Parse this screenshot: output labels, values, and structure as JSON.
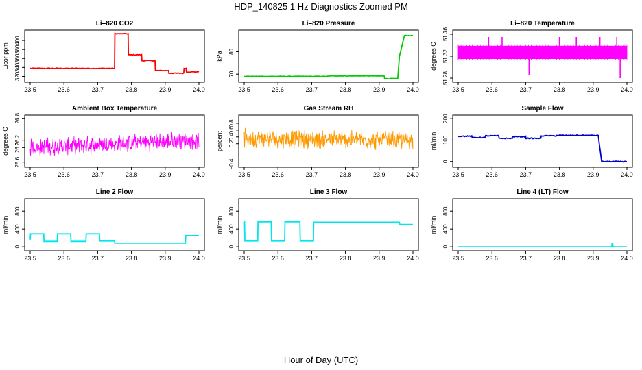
{
  "figure": {
    "title": "HDP_140825  1 Hz Diagnostics Zoomed PM",
    "xlabel": "Hour of Day (UTC)"
  },
  "chart_data": [
    {
      "type": "line",
      "title": "Li–820 CO2",
      "ylabel": "Licor ppm",
      "color": "#ff0000",
      "xlim": [
        23.5,
        24.0
      ],
      "ylim": [
        310,
        420
      ],
      "xticks": [
        "23.5",
        "23.6",
        "23.7",
        "23.8",
        "23.9",
        "24.0"
      ],
      "yticks": [
        "320",
        "340",
        "360",
        "380",
        "400"
      ],
      "pattern": "step",
      "noise": 0.8,
      "x": [
        23.5,
        23.75,
        23.751,
        23.79,
        23.791,
        23.83,
        23.831,
        23.87,
        23.871,
        23.91,
        23.911,
        23.955,
        23.956,
        23.962,
        23.963,
        24.0
      ],
      "y": [
        338,
        338,
        415,
        415,
        368,
        368,
        355,
        355,
        333,
        333,
        327,
        327,
        338,
        338,
        330,
        330
      ]
    },
    {
      "type": "line",
      "title": "Li–820 Pressure",
      "ylabel": "kPa",
      "color": "#00cc00",
      "xlim": [
        23.5,
        24.0
      ],
      "ylim": [
        67,
        89
      ],
      "xticks": [
        "23.5",
        "23.6",
        "23.7",
        "23.8",
        "23.9",
        "24.0"
      ],
      "yticks": [
        "70",
        "80"
      ],
      "pattern": "step",
      "noise": 0.1,
      "x": [
        23.5,
        23.75,
        23.751,
        23.915,
        23.916,
        23.955,
        23.96,
        23.975,
        24.0
      ],
      "y": [
        69.0,
        69.0,
        69.2,
        69.2,
        68.0,
        68.0,
        78.0,
        87.2,
        87.2
      ]
    },
    {
      "type": "line",
      "title": "Li–820 Temperature",
      "ylabel": "degrees C",
      "color": "#ff00ff",
      "xlim": [
        23.5,
        24.0
      ],
      "ylim": [
        51.275,
        51.365
      ],
      "xticks": [
        "23.5",
        "23.6",
        "23.7",
        "23.8",
        "23.9",
        "24.0"
      ],
      "yticks": [
        "51.28",
        "51.32",
        "51.36"
      ],
      "pattern": "band",
      "band": [
        51.315,
        51.339
      ],
      "spikes": [
        [
          23.59,
          51.355
        ],
        [
          23.63,
          51.355
        ],
        [
          23.71,
          51.285
        ],
        [
          23.8,
          51.355
        ],
        [
          23.85,
          51.355
        ],
        [
          23.92,
          51.355
        ],
        [
          23.97,
          51.355
        ],
        [
          23.98,
          51.28
        ]
      ]
    },
    {
      "type": "line",
      "title": "Ambient Box Temperature",
      "ylabel": "degrees C",
      "color": "#ff00ff",
      "xlim": [
        23.5,
        24.0
      ],
      "ylim": [
        25.5,
        26.85
      ],
      "xticks": [
        "23.5",
        "23.6",
        "23.7",
        "23.8",
        "23.9",
        "24.0"
      ],
      "yticks": [
        "25.6",
        "26.0",
        "26.2",
        "26.8"
      ],
      "pattern": "noise",
      "mean": [
        26.0,
        26.2
      ],
      "amp": 0.28
    },
    {
      "type": "line",
      "title": "Gas Stream RH",
      "ylabel": "percent",
      "color": "#ff9900",
      "xlim": [
        23.5,
        24.0
      ],
      "ylim": [
        -0.45,
        1.0
      ],
      "xticks": [
        "23.5",
        "23.6",
        "23.7",
        "23.8",
        "23.9",
        "24.0"
      ],
      "yticks": [
        "−0.4",
        "0.2",
        "0.4",
        "0.6",
        "0.8"
      ],
      "pattern": "noise",
      "mean": [
        0.35,
        0.3
      ],
      "amp": 0.32
    },
    {
      "type": "line",
      "title": "Sample Flow",
      "ylabel": "ml/min",
      "color": "#0000cc",
      "xlim": [
        23.5,
        24.0
      ],
      "ylim": [
        -20,
        210
      ],
      "xticks": [
        "23.5",
        "23.6",
        "23.7",
        "23.8",
        "23.9",
        "24.0"
      ],
      "yticks": [
        "0",
        "100",
        "200"
      ],
      "pattern": "step",
      "noise": 2,
      "x": [
        23.5,
        23.54,
        23.541,
        23.58,
        23.581,
        23.62,
        23.621,
        23.66,
        23.661,
        23.7,
        23.701,
        23.745,
        23.746,
        23.79,
        23.791,
        23.915,
        23.925,
        24.0
      ],
      "y": [
        118,
        118,
        112,
        112,
        120,
        120,
        108,
        108,
        116,
        116,
        108,
        108,
        120,
        120,
        122,
        122,
        0,
        0
      ]
    },
    {
      "type": "line",
      "title": "Line 2 Flow",
      "ylabel": "ml/min",
      "color": "#00e5ee",
      "xlim": [
        23.5,
        24.0
      ],
      "ylim": [
        -60,
        1050
      ],
      "xticks": [
        "23.5",
        "23.6",
        "23.7",
        "23.8",
        "23.9",
        "24.0"
      ],
      "yticks": [
        "0",
        "400",
        "800"
      ],
      "pattern": "step",
      "noise": 0,
      "x": [
        23.5,
        23.501,
        23.54,
        23.541,
        23.58,
        23.581,
        23.62,
        23.621,
        23.665,
        23.666,
        23.705,
        23.706,
        23.75,
        23.751,
        23.96,
        23.961,
        24.0
      ],
      "y": [
        160,
        290,
        290,
        120,
        120,
        290,
        290,
        120,
        120,
        290,
        290,
        130,
        130,
        80,
        80,
        250,
        250
      ]
    },
    {
      "type": "line",
      "title": "Line 3 Flow",
      "ylabel": "ml/min",
      "color": "#00e5ee",
      "xlim": [
        23.5,
        24.0
      ],
      "ylim": [
        -60,
        1050
      ],
      "xticks": [
        "23.5",
        "23.6",
        "23.7",
        "23.8",
        "23.9",
        "24.0"
      ],
      "yticks": [
        "0",
        "400",
        "800"
      ],
      "pattern": "step",
      "noise": 0,
      "x": [
        23.5,
        23.501,
        23.502,
        23.54,
        23.541,
        23.58,
        23.581,
        23.62,
        23.621,
        23.665,
        23.666,
        23.705,
        23.706,
        23.96,
        23.961,
        24.0
      ],
      "y": [
        560,
        560,
        130,
        130,
        560,
        560,
        130,
        130,
        560,
        560,
        130,
        130,
        550,
        550,
        500,
        500
      ]
    },
    {
      "type": "line",
      "title": "Line 4 (LT) Flow",
      "ylabel": "ml/min",
      "color": "#00e5ee",
      "xlim": [
        23.5,
        24.0
      ],
      "ylim": [
        -60,
        1050
      ],
      "xticks": [
        "23.5",
        "23.6",
        "23.7",
        "23.8",
        "23.9",
        "24.0"
      ],
      "yticks": [
        "0",
        "400",
        "800"
      ],
      "pattern": "step",
      "noise": 0,
      "x": [
        23.5,
        23.955,
        23.956,
        23.958,
        23.959,
        24.0
      ],
      "y": [
        0,
        0,
        80,
        80,
        0,
        0
      ]
    }
  ]
}
